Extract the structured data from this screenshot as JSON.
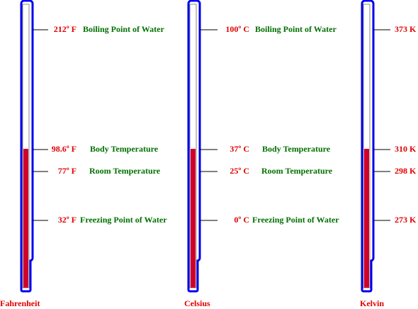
{
  "thermometers": [
    {
      "name": "Fahrenheit",
      "marks": [
        {
          "reading": "212º F",
          "description": "Boiling Point of Water"
        },
        {
          "reading": "98.6º F",
          "description": "Body Temperature"
        },
        {
          "reading": "77º F",
          "description": "Room Temperature"
        },
        {
          "reading": "32º F",
          "description": "Freezing Point of Water"
        }
      ]
    },
    {
      "name": "Celsius",
      "marks": [
        {
          "reading": "100º C",
          "description": "Boiling Point of Water"
        },
        {
          "reading": "37º C",
          "description": "Body Temperature"
        },
        {
          "reading": "25º C",
          "description": "Room Temperature"
        },
        {
          "reading": "0º C",
          "description": "Freezing Point of Water"
        }
      ]
    },
    {
      "name": "Kelvin",
      "marks": [
        {
          "reading": "373 K"
        },
        {
          "reading": "310 K"
        },
        {
          "reading": "298 K"
        },
        {
          "reading": "273 K"
        }
      ]
    }
  ]
}
